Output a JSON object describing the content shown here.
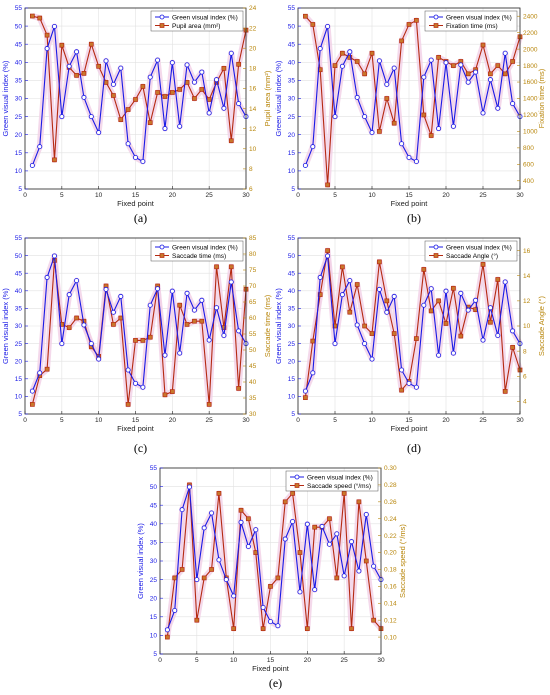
{
  "chart_data": [
    {
      "type": "line",
      "panel_label": "(a)",
      "xlabel": "Fixed point",
      "ylabel_left": "Green visual index (%)",
      "ylabel_right": "Pupil area (mm²)",
      "xlim": [
        0,
        30
      ],
      "xticks": [
        0,
        5,
        10,
        15,
        20,
        25,
        30
      ],
      "ylim_left": [
        5,
        55
      ],
      "yticks_left": [
        5,
        10,
        15,
        20,
        25,
        30,
        35,
        40,
        45,
        50,
        55
      ],
      "ylim_right": [
        6,
        24
      ],
      "yticks_right": [
        6,
        8,
        10,
        12,
        14,
        16,
        18,
        20,
        22,
        24
      ],
      "legend": [
        "Green visual index (%)",
        "Pupil area (mm²)"
      ],
      "legend_position": "top-right",
      "grid": true,
      "x": [
        1,
        2,
        3,
        4,
        5,
        6,
        7,
        8,
        9,
        10,
        11,
        12,
        13,
        14,
        15,
        16,
        17,
        18,
        19,
        20,
        21,
        22,
        23,
        24,
        25,
        26,
        27,
        28,
        29,
        30
      ],
      "series": [
        {
          "name": "Green visual index (%)",
          "axis": "left",
          "values": [
            11.5,
            16.7,
            43.8,
            49.9,
            25.0,
            38.9,
            42.9,
            30.3,
            25.0,
            20.6,
            40.4,
            33.9,
            38.4,
            17.5,
            13.7,
            12.6,
            35.9,
            40.6,
            21.7,
            39.9,
            22.3,
            39.3,
            34.5,
            37.3,
            26.0,
            35.2,
            27.3,
            42.5,
            28.6,
            25.0
          ]
        },
        {
          "name": "Pupil area (mm²)",
          "axis": "right",
          "values": [
            23.2,
            23.0,
            21.3,
            8.9,
            20.3,
            18.1,
            17.3,
            17.5,
            20.4,
            18.2,
            16.6,
            15.3,
            12.9,
            13.9,
            14.9,
            16.2,
            12.6,
            15.6,
            15.2,
            15.6,
            15.9,
            16.6,
            15.0,
            15.9,
            14.9,
            16.6,
            18.0,
            10.8,
            18.4,
            21.8
          ]
        }
      ]
    },
    {
      "type": "line",
      "panel_label": "(b)",
      "xlabel": "Fixed point",
      "ylabel_left": "Green visual index (%)",
      "ylabel_right": "Fixation time (ms)",
      "xlim": [
        0,
        30
      ],
      "xticks": [
        0,
        5,
        10,
        15,
        20,
        25,
        30
      ],
      "ylim_left": [
        5,
        55
      ],
      "yticks_left": [
        5,
        10,
        15,
        20,
        25,
        30,
        35,
        40,
        45,
        50,
        55
      ],
      "ylim_right": [
        300,
        2500
      ],
      "yticks_right": [
        400,
        600,
        800,
        1000,
        1200,
        1400,
        1600,
        1800,
        2000,
        2200,
        2400
      ],
      "legend": [
        "Green visual index (%)",
        "Fixation time (ms)"
      ],
      "legend_position": "top-right",
      "grid": true,
      "x": [
        1,
        2,
        3,
        4,
        5,
        6,
        7,
        8,
        9,
        10,
        11,
        12,
        13,
        14,
        15,
        16,
        17,
        18,
        19,
        20,
        21,
        22,
        23,
        24,
        25,
        26,
        27,
        28,
        29,
        30
      ],
      "series": [
        {
          "name": "Green visual index (%)",
          "axis": "left",
          "values": [
            11.5,
            16.7,
            43.8,
            49.9,
            25.0,
            38.9,
            42.9,
            30.3,
            25.0,
            20.6,
            40.4,
            33.9,
            38.4,
            17.5,
            13.7,
            12.6,
            35.9,
            40.6,
            21.7,
            39.9,
            22.3,
            39.3,
            34.5,
            37.3,
            26.0,
            35.2,
            27.3,
            42.5,
            28.6,
            25.0
          ]
        },
        {
          "name": "Fixation time (ms)",
          "axis": "right",
          "values": [
            2400,
            2300,
            1750,
            350,
            1800,
            1950,
            1900,
            1850,
            1700,
            1950,
            1000,
            1400,
            1100,
            2100,
            2300,
            2350,
            1200,
            950,
            1900,
            1850,
            1800,
            1850,
            1700,
            1750,
            2050,
            1700,
            1800,
            1700,
            1850,
            2150
          ]
        }
      ]
    },
    {
      "type": "line",
      "panel_label": "(c)",
      "xlabel": "Fixed point",
      "ylabel_left": "Green visual index (%)",
      "ylabel_right": "Saccade time (ms)",
      "xlim": [
        0,
        30
      ],
      "xticks": [
        0,
        5,
        10,
        15,
        20,
        25,
        30
      ],
      "ylim_left": [
        5,
        55
      ],
      "yticks_left": [
        5,
        10,
        15,
        20,
        25,
        30,
        35,
        40,
        45,
        50,
        55
      ],
      "ylim_right": [
        30,
        85
      ],
      "yticks_right": [
        30,
        35,
        40,
        45,
        50,
        55,
        60,
        65,
        70,
        75,
        80,
        85
      ],
      "legend": [
        "Green visual index (%)",
        "Saccade time (ms)"
      ],
      "legend_position": "top-right",
      "grid": true,
      "x": [
        1,
        2,
        3,
        4,
        5,
        6,
        7,
        8,
        9,
        10,
        11,
        12,
        13,
        14,
        15,
        16,
        17,
        18,
        19,
        20,
        21,
        22,
        23,
        24,
        25,
        26,
        27,
        28,
        29,
        30
      ],
      "series": [
        {
          "name": "Green visual index (%)",
          "axis": "left",
          "values": [
            11.5,
            16.7,
            43.8,
            49.9,
            25.0,
            38.9,
            42.9,
            30.3,
            25.0,
            20.6,
            40.4,
            33.9,
            38.4,
            17.5,
            13.7,
            12.6,
            35.9,
            40.6,
            21.7,
            39.9,
            22.3,
            39.3,
            34.5,
            37.3,
            26.0,
            35.2,
            27.3,
            42.5,
            28.6,
            25.0
          ]
        },
        {
          "name": "Saccade time (ms)",
          "axis": "right",
          "values": [
            33,
            42,
            44,
            78,
            58,
            57,
            60,
            59,
            51,
            48,
            70,
            58,
            60,
            33,
            53,
            53,
            54,
            70,
            36,
            37,
            64,
            58,
            59,
            59,
            33,
            76,
            57,
            76,
            38,
            69
          ]
        }
      ]
    },
    {
      "type": "line",
      "panel_label": "(d)",
      "xlabel": "Fixed point",
      "ylabel_left": "Green visual index (%)",
      "ylabel_right": "Saccade Angle (°)",
      "xlim": [
        0,
        30
      ],
      "xticks": [
        0,
        5,
        10,
        15,
        20,
        25,
        30
      ],
      "ylim_left": [
        5,
        55
      ],
      "yticks_left": [
        5,
        10,
        15,
        20,
        25,
        30,
        35,
        40,
        45,
        50,
        55
      ],
      "ylim_right": [
        3,
        17
      ],
      "yticks_right": [
        4,
        6,
        8,
        10,
        12,
        14,
        16
      ],
      "legend": [
        "Green visual index (%)",
        "Saccade Angle (°)"
      ],
      "legend_position": "top-right",
      "grid": true,
      "x": [
        1,
        2,
        3,
        4,
        5,
        6,
        7,
        8,
        9,
        10,
        11,
        12,
        13,
        14,
        15,
        16,
        17,
        18,
        19,
        20,
        21,
        22,
        23,
        24,
        25,
        26,
        27,
        28,
        29,
        30
      ],
      "series": [
        {
          "name": "Green visual index (%)",
          "axis": "left",
          "values": [
            11.5,
            16.7,
            43.8,
            49.9,
            25.0,
            38.9,
            42.9,
            30.3,
            25.0,
            20.6,
            40.4,
            33.9,
            38.4,
            17.5,
            13.7,
            12.6,
            35.9,
            40.6,
            21.7,
            39.9,
            22.3,
            39.3,
            34.5,
            37.3,
            26.0,
            35.2,
            27.3,
            42.5,
            28.6,
            25.0
          ]
        },
        {
          "name": "Saccade Angle (°)",
          "axis": "right",
          "values": [
            4.3,
            8.8,
            12.5,
            16.0,
            10.0,
            14.7,
            11.1,
            13.3,
            10.0,
            9.4,
            15.1,
            12.0,
            9.4,
            4.9,
            5.6,
            9.0,
            14.5,
            11.2,
            12.0,
            10.2,
            13.0,
            9.2,
            11.5,
            11.3,
            14.9,
            10.3,
            13.7,
            4.8,
            8.3,
            6.5
          ]
        }
      ]
    },
    {
      "type": "line",
      "panel_label": "(e)",
      "xlabel": "Fixed point",
      "ylabel_left": "Green visual index (%)",
      "ylabel_right": "Saccade speed (°/ms)",
      "xlim": [
        0,
        30
      ],
      "xticks": [
        0,
        5,
        10,
        15,
        20,
        25,
        30
      ],
      "ylim_left": [
        5,
        55
      ],
      "yticks_left": [
        5,
        10,
        15,
        20,
        25,
        30,
        35,
        40,
        45,
        50,
        55
      ],
      "ylim_right": [
        0.08,
        0.3
      ],
      "yticks_right": [
        0.1,
        0.12,
        0.14,
        0.16,
        0.18,
        0.2,
        0.22,
        0.24,
        0.26,
        0.28,
        0.3
      ],
      "legend": [
        "Green visual index (%)",
        "Saccade speed (°/ms)"
      ],
      "legend_position": "top-right",
      "grid": true,
      "x": [
        1,
        2,
        3,
        4,
        5,
        6,
        7,
        8,
        9,
        10,
        11,
        12,
        13,
        14,
        15,
        16,
        17,
        18,
        19,
        20,
        21,
        22,
        23,
        24,
        25,
        26,
        27,
        28,
        29,
        30
      ],
      "series": [
        {
          "name": "Green visual index (%)",
          "axis": "left",
          "values": [
            11.5,
            16.7,
            43.8,
            49.9,
            25.0,
            38.9,
            42.9,
            30.3,
            25.0,
            20.6,
            40.4,
            33.9,
            38.4,
            17.5,
            13.7,
            12.6,
            35.9,
            40.6,
            21.7,
            39.9,
            22.3,
            39.3,
            34.5,
            37.3,
            26.0,
            35.2,
            27.3,
            42.5,
            28.6,
            25.0
          ]
        },
        {
          "name": "Saccade speed (°/ms)",
          "axis": "right",
          "values": [
            0.1,
            0.17,
            0.18,
            0.28,
            0.12,
            0.17,
            0.18,
            0.27,
            0.17,
            0.11,
            0.25,
            0.24,
            0.2,
            0.11,
            0.16,
            0.17,
            0.26,
            0.27,
            0.2,
            0.11,
            0.23,
            0.23,
            0.24,
            0.17,
            0.27,
            0.11,
            0.26,
            0.19,
            0.12,
            0.11
          ]
        }
      ]
    }
  ],
  "colors": {
    "left_series": "#1a1ae6",
    "right_series": "#b52a12",
    "right_marker_face": "#c9772c",
    "right_axis": "#b8860b",
    "shadow": "#f1cfe6",
    "grid": "#e2e2e2"
  }
}
